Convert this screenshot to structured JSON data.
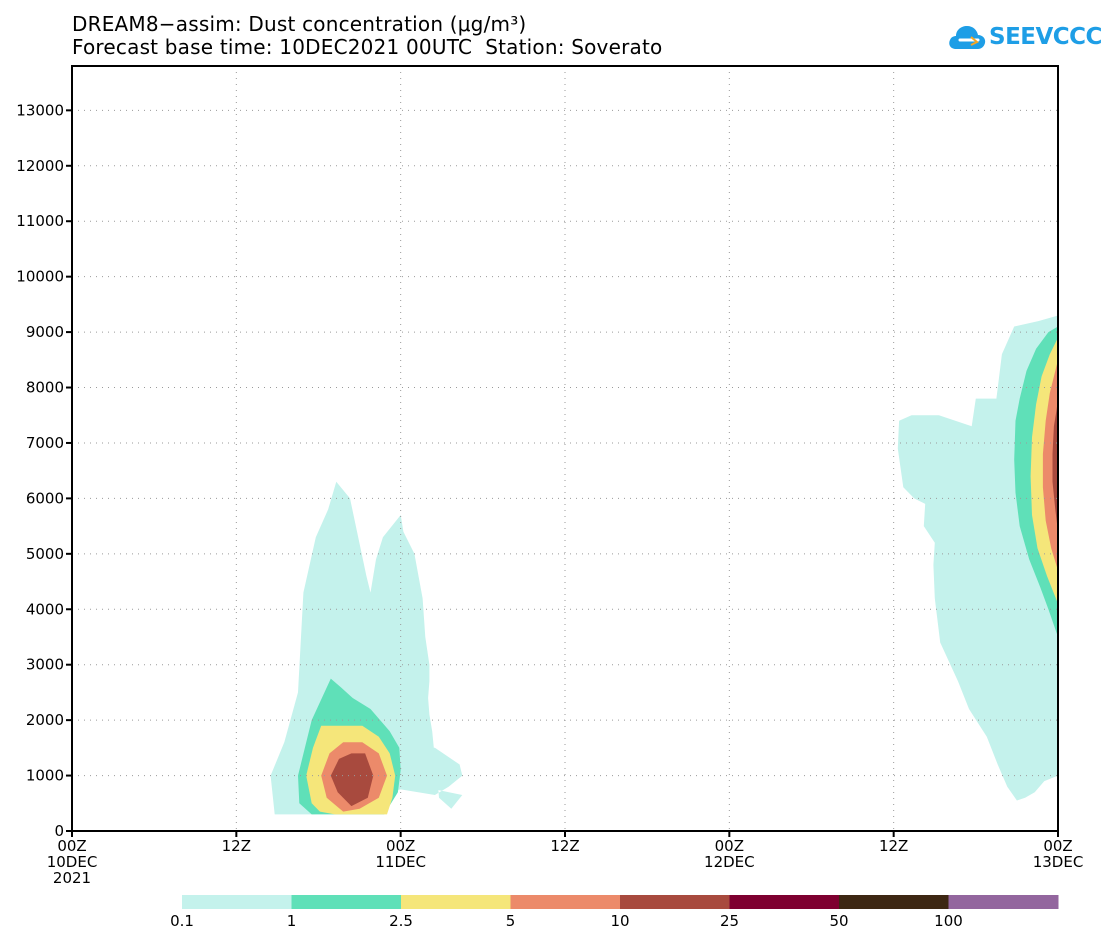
{
  "title_line1": "DREAM8−assim: Dust concentration (μg/m³)",
  "title_line2": "Forecast base time: 10DEC2021 00UTC  Station: Soverato",
  "logo": {
    "text": "SEEVCCC",
    "icon": "cloud-icon",
    "color": "#1e9ee6"
  },
  "chart_data": {
    "type": "contour",
    "ylabel": "",
    "xlabel": "",
    "ylim": [
      0,
      13800
    ],
    "xlim_hours": [
      0,
      72
    ],
    "grid": true,
    "y_ticks": [
      0,
      1000,
      2000,
      3000,
      4000,
      5000,
      6000,
      7000,
      8000,
      9000,
      10000,
      11000,
      12000,
      13000
    ],
    "x_ticks": [
      {
        "hour": 0,
        "lines": [
          "00Z",
          "10DEC",
          "2021"
        ]
      },
      {
        "hour": 12,
        "lines": [
          "12Z"
        ]
      },
      {
        "hour": 24,
        "lines": [
          "00Z",
          "11DEC"
        ]
      },
      {
        "hour": 36,
        "lines": [
          "12Z"
        ]
      },
      {
        "hour": 48,
        "lines": [
          "00Z",
          "12DEC"
        ]
      },
      {
        "hour": 60,
        "lines": [
          "12Z"
        ]
      },
      {
        "hour": 72,
        "lines": [
          "00Z",
          "13DEC"
        ]
      }
    ],
    "levels": [
      0.1,
      1,
      2.5,
      5,
      10,
      25,
      50,
      100
    ],
    "level_colors": [
      "#c4f2ec",
      "#5fe0b8",
      "#f5e67a",
      "#ec8a6a",
      "#a84a3e",
      "#7e0030",
      "#3d2713",
      "#93669e"
    ],
    "features": [
      {
        "name": "dust event 10-11 DEC",
        "contours": [
          {
            "level": 0.1,
            "points": [
              [
                14.5,
                1000
              ],
              [
                14.8,
                300
              ],
              [
                17.6,
                300
              ],
              [
                20,
                350
              ],
              [
                22,
                650
              ],
              [
                24,
                750
              ],
              [
                26.5,
                650
              ],
              [
                27.5,
                800
              ],
              [
                28.5,
                1000
              ],
              [
                28.3,
                1200
              ],
              [
                26.5,
                1500
              ],
              [
                25.3,
                1500
              ],
              [
                25.2,
                850
              ],
              [
                26.5,
                750
              ],
              [
                28.5,
                650
              ],
              [
                27.7,
                400
              ],
              [
                26.8,
                600
              ],
              [
                26.6,
                1200
              ],
              [
                26.5,
                1300
              ],
              [
                26.3,
                1800
              ],
              [
                26.1,
                2100
              ],
              [
                26,
                2400
              ],
              [
                26.1,
                2700
              ],
              [
                26.1,
                3000
              ],
              [
                25.8,
                3500
              ],
              [
                25.6,
                4200
              ],
              [
                25,
                5000
              ],
              [
                24.2,
                5400
              ],
              [
                24,
                5700
              ],
              [
                22.7,
                5300
              ],
              [
                22.2,
                4900
              ],
              [
                21.8,
                4300
              ],
              [
                21.5,
                4600
              ],
              [
                20.3,
                6000
              ],
              [
                19.3,
                6300
              ],
              [
                18.7,
                5800
              ],
              [
                17.8,
                5300
              ],
              [
                16.9,
                4300
              ],
              [
                16.5,
                2500
              ],
              [
                15.5,
                1600
              ]
            ]
          },
          {
            "level": 1,
            "points": [
              [
                16.5,
                1000
              ],
              [
                16.6,
                500
              ],
              [
                17.5,
                300
              ],
              [
                22.8,
                300
              ],
              [
                23.3,
                500
              ],
              [
                23.8,
                700
              ],
              [
                24,
                1100
              ],
              [
                23.9,
                1500
              ],
              [
                23.2,
                1800
              ],
              [
                22.5,
                2000
              ],
              [
                21.8,
                2200
              ],
              [
                20.5,
                2400
              ],
              [
                19.6,
                2600
              ],
              [
                18.9,
                2750
              ],
              [
                17.5,
                2000
              ]
            ]
          },
          {
            "level": 2.5,
            "points": [
              [
                17.1,
                1000
              ],
              [
                17.5,
                500
              ],
              [
                18.1,
                350
              ],
              [
                19.2,
                300
              ],
              [
                23,
                300
              ],
              [
                23.4,
                600
              ],
              [
                23.6,
                1000
              ],
              [
                23.2,
                1400
              ],
              [
                22.4,
                1700
              ],
              [
                21.2,
                1900
              ],
              [
                18.2,
                1900
              ],
              [
                17.6,
                1500
              ]
            ]
          },
          {
            "level": 5,
            "points": [
              [
                18.2,
                1000
              ],
              [
                18.6,
                600
              ],
              [
                19.8,
                350
              ],
              [
                21,
                400
              ],
              [
                22.4,
                600
              ],
              [
                23,
                1000
              ],
              [
                22.4,
                1400
              ],
              [
                21.2,
                1600
              ],
              [
                19.8,
                1600
              ],
              [
                18.8,
                1400
              ]
            ]
          },
          {
            "level": 10,
            "points": [
              [
                18.9,
                1000
              ],
              [
                19.4,
                700
              ],
              [
                20.4,
                450
              ],
              [
                21.6,
                600
              ],
              [
                22,
                1000
              ],
              [
                21.4,
                1400
              ],
              [
                20.4,
                1400
              ],
              [
                19.5,
                1300
              ]
            ]
          }
        ]
      },
      {
        "name": "dust event 12-13 DEC",
        "contours": [
          {
            "level": 0.1,
            "points": [
              [
                72,
                1000
              ],
              [
                72,
                9300
              ],
              [
                70.6,
                9200
              ],
              [
                68.8,
                9100
              ],
              [
                67.9,
                8600
              ],
              [
                67.5,
                7800
              ],
              [
                66,
                7800
              ],
              [
                65.7,
                7300
              ],
              [
                63.3,
                7500
              ],
              [
                61.3,
                7500
              ],
              [
                60.4,
                7400
              ],
              [
                60.3,
                6900
              ],
              [
                60.7,
                6200
              ],
              [
                61.5,
                6000
              ],
              [
                62.3,
                5900
              ],
              [
                62.2,
                5500
              ],
              [
                63,
                5200
              ],
              [
                62.9,
                4800
              ],
              [
                63,
                4200
              ],
              [
                63.4,
                3400
              ],
              [
                64.7,
                2700
              ],
              [
                65.5,
                2200
              ],
              [
                66.8,
                1700
              ],
              [
                67.6,
                1200
              ],
              [
                68.3,
                800
              ],
              [
                69,
                550
              ],
              [
                69.6,
                600
              ],
              [
                70.3,
                700
              ],
              [
                71,
                900
              ]
            ]
          },
          {
            "level": 1,
            "points": [
              [
                72,
                3500
              ],
              [
                71.3,
                4000
              ],
              [
                70.7,
                4400
              ],
              [
                69.9,
                4900
              ],
              [
                69.2,
                5500
              ],
              [
                68.9,
                6100
              ],
              [
                68.8,
                6700
              ],
              [
                68.9,
                7400
              ],
              [
                69.2,
                7800
              ],
              [
                69.7,
                8300
              ],
              [
                70.4,
                8700
              ],
              [
                71.3,
                9000
              ],
              [
                72,
                9100
              ]
            ]
          },
          {
            "level": 2.5,
            "points": [
              [
                72,
                4100
              ],
              [
                71.2,
                4600
              ],
              [
                70.5,
                5100
              ],
              [
                70.1,
                5700
              ],
              [
                70,
                6400
              ],
              [
                70.1,
                7100
              ],
              [
                70.4,
                7700
              ],
              [
                70.8,
                8200
              ],
              [
                71.4,
                8600
              ],
              [
                72,
                8900
              ]
            ]
          },
          {
            "level": 5,
            "points": [
              [
                72,
                4700
              ],
              [
                71.5,
                5100
              ],
              [
                71.1,
                5600
              ],
              [
                70.9,
                6200
              ],
              [
                70.9,
                6800
              ],
              [
                71.1,
                7400
              ],
              [
                71.4,
                7900
              ],
              [
                71.8,
                8300
              ],
              [
                72,
                8500
              ]
            ]
          },
          {
            "level": 10,
            "points": [
              [
                72,
                5400
              ],
              [
                71.8,
                5800
              ],
              [
                71.6,
                6300
              ],
              [
                71.6,
                6800
              ],
              [
                71.7,
                7300
              ],
              [
                71.9,
                7600
              ],
              [
                72,
                7800
              ]
            ]
          }
        ]
      }
    ],
    "colorbar": {
      "labels": [
        "0.1",
        "1",
        "2.5",
        "5",
        "10",
        "25",
        "50",
        "100"
      ]
    }
  }
}
